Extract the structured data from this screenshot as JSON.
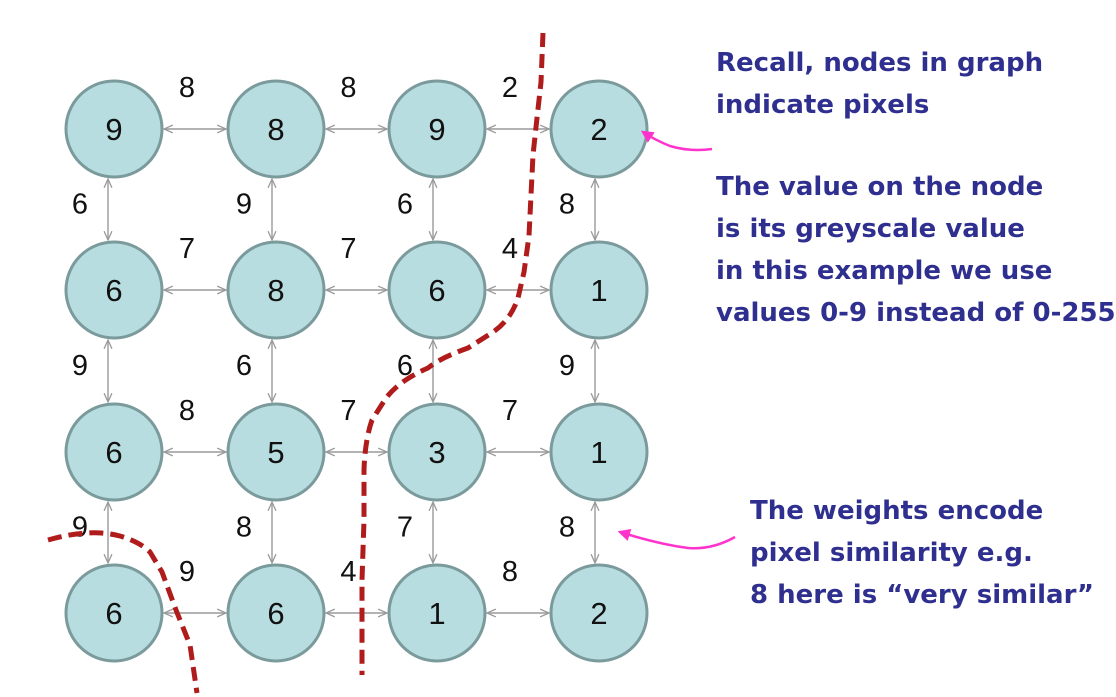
{
  "nodes": [
    {
      "id": "n00",
      "value": "9",
      "row": 0,
      "col": 0
    },
    {
      "id": "n01",
      "value": "8",
      "row": 0,
      "col": 1
    },
    {
      "id": "n02",
      "value": "9",
      "row": 0,
      "col": 2
    },
    {
      "id": "n03",
      "value": "2",
      "row": 0,
      "col": 3
    },
    {
      "id": "n10",
      "value": "6",
      "row": 1,
      "col": 0
    },
    {
      "id": "n11",
      "value": "8",
      "row": 1,
      "col": 1
    },
    {
      "id": "n12",
      "value": "6",
      "row": 1,
      "col": 2
    },
    {
      "id": "n13",
      "value": "1",
      "row": 1,
      "col": 3
    },
    {
      "id": "n20",
      "value": "6",
      "row": 2,
      "col": 0
    },
    {
      "id": "n21",
      "value": "5",
      "row": 2,
      "col": 1
    },
    {
      "id": "n22",
      "value": "3",
      "row": 2,
      "col": 2
    },
    {
      "id": "n23",
      "value": "1",
      "row": 2,
      "col": 3
    },
    {
      "id": "n30",
      "value": "6",
      "row": 3,
      "col": 0
    },
    {
      "id": "n31",
      "value": "6",
      "row": 3,
      "col": 1
    },
    {
      "id": "n32",
      "value": "1",
      "row": 3,
      "col": 2
    },
    {
      "id": "n33",
      "value": "2",
      "row": 3,
      "col": 3
    }
  ],
  "horizontal_edges": [
    {
      "row": 0,
      "col": 0,
      "weight": "8"
    },
    {
      "row": 0,
      "col": 1,
      "weight": "8"
    },
    {
      "row": 0,
      "col": 2,
      "weight": "2"
    },
    {
      "row": 1,
      "col": 0,
      "weight": "7"
    },
    {
      "row": 1,
      "col": 1,
      "weight": "7"
    },
    {
      "row": 1,
      "col": 2,
      "weight": "4"
    },
    {
      "row": 2,
      "col": 0,
      "weight": "8"
    },
    {
      "row": 2,
      "col": 1,
      "weight": "7"
    },
    {
      "row": 2,
      "col": 2,
      "weight": "7"
    },
    {
      "row": 3,
      "col": 0,
      "weight": "9"
    },
    {
      "row": 3,
      "col": 1,
      "weight": "4"
    },
    {
      "row": 3,
      "col": 2,
      "weight": "8"
    }
  ],
  "vertical_edges": [
    {
      "row": 0,
      "col": 0,
      "weight": "6"
    },
    {
      "row": 0,
      "col": 1,
      "weight": "9"
    },
    {
      "row": 0,
      "col": 2,
      "weight": "6"
    },
    {
      "row": 0,
      "col": 3,
      "weight": "8"
    },
    {
      "row": 1,
      "col": 0,
      "weight": "9"
    },
    {
      "row": 1,
      "col": 1,
      "weight": "6"
    },
    {
      "row": 1,
      "col": 2,
      "weight": "6"
    },
    {
      "row": 1,
      "col": 3,
      "weight": "9"
    },
    {
      "row": 2,
      "col": 0,
      "weight": "9"
    },
    {
      "row": 2,
      "col": 1,
      "weight": "8"
    },
    {
      "row": 2,
      "col": 2,
      "weight": "7"
    },
    {
      "row": 2,
      "col": 3,
      "weight": "8"
    }
  ],
  "annotations": {
    "recall": {
      "lines": [
        "Recall, nodes in graph",
        "indicate pixels"
      ]
    },
    "value": {
      "lines": [
        "The value on the node",
        "is its greyscale value",
        "in this example we use",
        "values 0-9 instead of 0-255"
      ]
    },
    "weights": {
      "lines": [
        "The weights encode",
        "pixel similarity e.g.",
        "8 here is “very similar”"
      ]
    }
  },
  "colors": {
    "node_fill": "#b8dde0",
    "node_stroke": "#7b9a9c",
    "edge": "#9a9a9a",
    "cut_line": "#b01c1c",
    "annotation_text": "#2f2f8f",
    "pointer_arrow": "#ff33cc"
  }
}
